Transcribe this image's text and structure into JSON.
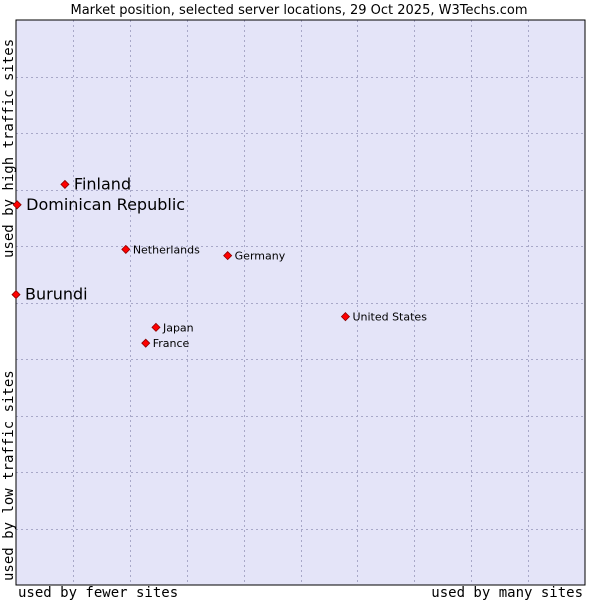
{
  "chart_data": {
    "type": "scatter",
    "title": "Market position, selected server locations, 29 Oct 2025, W3Techs.com",
    "xlabel_left": "used by fewer sites",
    "xlabel_right": "used by many sites",
    "ylabel_top": "used by high traffic sites",
    "ylabel_bottom": "used by low traffic sites",
    "xlim": [
      0,
      100
    ],
    "ylim": [
      0,
      100
    ],
    "grid": true,
    "points": [
      {
        "label": "Finland",
        "x": 8.6,
        "y": 70.9,
        "emphasis": true
      },
      {
        "label": "Dominican Republic",
        "x": 0.2,
        "y": 67.3,
        "emphasis": true
      },
      {
        "label": "Netherlands",
        "x": 19.3,
        "y": 59.4,
        "emphasis": false
      },
      {
        "label": "Germany",
        "x": 37.2,
        "y": 58.3,
        "emphasis": false
      },
      {
        "label": "Burundi",
        "x": 0.0,
        "y": 51.4,
        "emphasis": true
      },
      {
        "label": "United States",
        "x": 57.9,
        "y": 47.5,
        "emphasis": false
      },
      {
        "label": "Japan",
        "x": 24.6,
        "y": 45.6,
        "emphasis": false
      },
      {
        "label": "France",
        "x": 22.8,
        "y": 42.8,
        "emphasis": false
      }
    ]
  },
  "colors": {
    "plot_bg": "#e4e4f8",
    "grid": "#a8a8c8",
    "marker": "#ff0000",
    "marker_outline": "#8b0000",
    "axis": "#000000"
  }
}
